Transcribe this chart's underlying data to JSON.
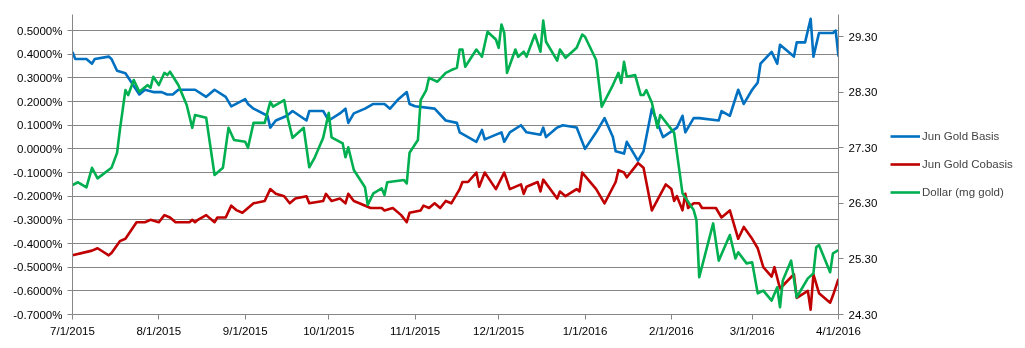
{
  "chart_data": {
    "type": "line",
    "xlim": [
      "2015-07-01",
      "2016-04-01"
    ],
    "xticks": [
      {
        "value": "2015-07-01",
        "label": "7/1/2015"
      },
      {
        "value": "2015-08-01",
        "label": "8/1/2015"
      },
      {
        "value": "2015-09-01",
        "label": "9/1/2015"
      },
      {
        "value": "2015-10-01",
        "label": "10/1/2015"
      },
      {
        "value": "2015-11-01",
        "label": "11/1/2015"
      },
      {
        "value": "2015-12-01",
        "label": "12/1/2015"
      },
      {
        "value": "2016-01-01",
        "label": "1/1/2016"
      },
      {
        "value": "2016-02-01",
        "label": "2/1/2016"
      },
      {
        "value": "2016-03-01",
        "label": "3/1/2016"
      },
      {
        "value": "2016-04-01",
        "label": "4/1/2016"
      }
    ],
    "ylim": [
      -0.7,
      0.568
    ],
    "yticks": [
      {
        "value": 0.5,
        "label": "0.5000%"
      },
      {
        "value": 0.4,
        "label": "0.4000%"
      },
      {
        "value": 0.3,
        "label": "0.3000%"
      },
      {
        "value": 0.2,
        "label": "0.2000%"
      },
      {
        "value": 0.1,
        "label": "0.1000%"
      },
      {
        "value": 0.0,
        "label": "0.0000%"
      },
      {
        "value": -0.1,
        "label": "-0.1000%"
      },
      {
        "value": -0.2,
        "label": "-0.2000%"
      },
      {
        "value": -0.3,
        "label": "-0.3000%"
      },
      {
        "value": -0.4,
        "label": "-0.4000%"
      },
      {
        "value": -0.5,
        "label": "-0.5000%"
      },
      {
        "value": -0.6,
        "label": "-0.6000%"
      },
      {
        "value": -0.7,
        "label": "-0.7000%"
      }
    ],
    "y2lim": [
      24.3,
      29.7
    ],
    "y2ticks": [
      {
        "value": 24.3,
        "label": "24.30"
      },
      {
        "value": 25.3,
        "label": "25.30"
      },
      {
        "value": 26.3,
        "label": "26.30"
      },
      {
        "value": 27.3,
        "label": "27.30"
      },
      {
        "value": 28.3,
        "label": "28.30"
      },
      {
        "value": 29.3,
        "label": "29.30"
      }
    ],
    "grid": "y",
    "legend": "right",
    "marker": "none",
    "line_style": "solid",
    "series": [
      {
        "name": "Jun Gold Basis",
        "color": "#0070c0",
        "x": [
          "2015-07-01",
          "2015-07-02",
          "2015-07-06",
          "2015-07-08",
          "2015-07-09",
          "2015-07-14",
          "2015-07-15",
          "2015-07-17",
          "2015-07-20",
          "2015-07-25",
          "2015-07-27",
          "2015-07-30",
          "2015-08-02",
          "2015-08-04",
          "2015-08-06",
          "2015-08-08",
          "2015-08-12",
          "2015-08-14",
          "2015-08-18",
          "2015-08-21",
          "2015-08-25",
          "2015-08-27",
          "2015-09-01",
          "2015-09-02",
          "2015-09-04",
          "2015-09-09",
          "2015-09-10",
          "2015-09-12",
          "2015-09-16",
          "2015-09-18",
          "2015-09-23",
          "2015-09-24",
          "2015-09-29",
          "2015-10-01",
          "2015-10-05",
          "2015-10-07",
          "2015-10-08",
          "2015-10-10",
          "2015-10-14",
          "2015-10-17",
          "2015-10-21",
          "2015-10-23",
          "2015-10-26",
          "2015-10-29",
          "2015-10-30",
          "2015-11-01",
          "2015-11-08",
          "2015-11-12",
          "2015-11-16",
          "2015-11-17",
          "2015-11-23",
          "2015-11-25",
          "2015-11-26",
          "2015-12-02",
          "2015-12-03",
          "2015-12-05",
          "2015-12-09",
          "2015-12-11",
          "2015-12-16",
          "2015-12-17",
          "2015-12-18",
          "2015-12-22",
          "2015-12-24",
          "2015-12-29",
          "2016-01-01",
          "2016-01-05",
          "2016-01-08",
          "2016-01-11",
          "2016-01-12",
          "2016-01-15",
          "2016-01-16",
          "2016-01-20",
          "2016-01-22",
          "2016-01-25",
          "2016-01-29",
          "2016-02-03",
          "2016-02-05",
          "2016-02-06",
          "2016-02-09",
          "2016-02-11",
          "2016-02-18",
          "2016-02-19",
          "2016-02-22",
          "2016-02-25",
          "2016-02-27",
          "2016-03-01",
          "2016-03-03",
          "2016-03-04",
          "2016-03-08",
          "2016-03-10",
          "2016-03-11",
          "2016-03-16",
          "2016-03-17",
          "2016-03-20",
          "2016-03-22",
          "2016-03-23",
          "2016-03-25",
          "2016-03-30",
          "2016-03-31",
          "2016-04-01"
        ],
        "values": [
          0.41,
          0.38,
          0.38,
          0.36,
          0.38,
          0.39,
          0.38,
          0.33,
          0.32,
          0.23,
          0.25,
          0.24,
          0.24,
          0.23,
          0.23,
          0.25,
          0.25,
          0.25,
          0.22,
          0.25,
          0.22,
          0.18,
          0.21,
          0.19,
          0.17,
          0.14,
          0.09,
          0.12,
          0.14,
          0.16,
          0.12,
          0.16,
          0.16,
          0.12,
          0.15,
          0.17,
          0.11,
          0.15,
          0.17,
          0.19,
          0.19,
          0.17,
          0.21,
          0.24,
          0.19,
          0.18,
          0.17,
          0.12,
          0.11,
          0.07,
          0.03,
          0.08,
          0.04,
          0.07,
          0.03,
          0.07,
          0.1,
          0.07,
          0.06,
          0.09,
          0.05,
          0.09,
          0.1,
          0.09,
          0.0,
          0.07,
          0.13,
          0.05,
          -0.01,
          -0.02,
          0.03,
          -0.05,
          -0.01,
          0.17,
          0.05,
          0.09,
          0.14,
          0.07,
          0.13,
          0.13,
          0.12,
          0.16,
          0.14,
          0.25,
          0.19,
          0.25,
          0.28,
          0.36,
          0.41,
          0.36,
          0.44,
          0.39,
          0.45,
          0.45,
          0.55,
          0.39,
          0.49,
          0.49,
          0.5,
          0.39
        ]
      },
      {
        "name": "Jun Gold Cobasis",
        "color": "#c00000",
        "x": [
          "2015-07-01",
          "2015-07-08",
          "2015-07-10",
          "2015-07-14",
          "2015-07-15",
          "2015-07-18",
          "2015-07-20",
          "2015-07-24",
          "2015-07-27",
          "2015-07-29",
          "2015-08-01",
          "2015-08-03",
          "2015-08-05",
          "2015-08-07",
          "2015-08-12",
          "2015-08-13",
          "2015-08-14",
          "2015-08-15",
          "2015-08-18",
          "2015-08-21",
          "2015-08-22",
          "2015-08-25",
          "2015-08-27",
          "2015-08-29",
          "2015-08-31",
          "2015-09-02",
          "2015-09-04",
          "2015-09-08",
          "2015-09-10",
          "2015-09-12",
          "2015-09-15",
          "2015-09-17",
          "2015-09-19",
          "2015-09-23",
          "2015-09-24",
          "2015-09-29",
          "2015-09-30",
          "2015-10-02",
          "2015-10-05",
          "2015-10-07",
          "2015-10-08",
          "2015-10-10",
          "2015-10-12",
          "2015-10-16",
          "2015-10-20",
          "2015-10-21",
          "2015-10-24",
          "2015-10-27",
          "2015-10-29",
          "2015-10-30",
          "2015-11-03",
          "2015-11-04",
          "2015-11-06",
          "2015-11-08",
          "2015-11-10",
          "2015-11-12",
          "2015-11-14",
          "2015-11-17",
          "2015-11-18",
          "2015-11-20",
          "2015-11-23",
          "2015-11-24",
          "2015-11-26",
          "2015-11-30",
          "2015-12-03",
          "2015-12-05",
          "2015-12-09",
          "2015-12-10",
          "2015-12-11",
          "2015-12-15",
          "2015-12-16",
          "2015-12-17",
          "2015-12-22",
          "2015-12-23",
          "2015-12-25",
          "2015-12-29",
          "2015-12-30",
          "2015-12-31",
          "2016-01-05",
          "2016-01-08",
          "2016-01-12",
          "2016-01-13",
          "2016-01-15",
          "2016-01-16",
          "2016-01-20",
          "2016-01-22",
          "2016-01-25",
          "2016-01-30",
          "2016-02-01",
          "2016-02-02",
          "2016-02-03",
          "2016-02-05",
          "2016-02-06",
          "2016-02-07",
          "2016-02-09",
          "2016-02-11",
          "2016-02-12",
          "2016-02-17",
          "2016-02-19",
          "2016-02-22",
          "2016-02-25",
          "2016-02-27",
          "2016-03-01",
          "2016-03-03",
          "2016-03-05",
          "2016-03-08",
          "2016-03-09",
          "2016-03-11",
          "2016-03-16",
          "2016-03-17",
          "2016-03-21",
          "2016-03-22",
          "2016-03-23",
          "2016-03-25",
          "2016-03-29",
          "2016-03-30",
          "2016-04-01"
        ],
        "values": [
          -0.45,
          -0.43,
          -0.42,
          -0.45,
          -0.44,
          -0.39,
          -0.38,
          -0.31,
          -0.31,
          -0.3,
          -0.31,
          -0.28,
          -0.29,
          -0.31,
          -0.31,
          -0.3,
          -0.31,
          -0.3,
          -0.28,
          -0.31,
          -0.29,
          -0.29,
          -0.24,
          -0.26,
          -0.27,
          -0.25,
          -0.23,
          -0.22,
          -0.17,
          -0.19,
          -0.2,
          -0.23,
          -0.21,
          -0.2,
          -0.23,
          -0.22,
          -0.19,
          -0.22,
          -0.21,
          -0.23,
          -0.19,
          -0.22,
          -0.23,
          -0.25,
          -0.25,
          -0.26,
          -0.25,
          -0.28,
          -0.31,
          -0.27,
          -0.26,
          -0.24,
          -0.25,
          -0.23,
          -0.25,
          -0.22,
          -0.23,
          -0.17,
          -0.14,
          -0.14,
          -0.1,
          -0.16,
          -0.1,
          -0.17,
          -0.1,
          -0.17,
          -0.15,
          -0.19,
          -0.16,
          -0.14,
          -0.18,
          -0.13,
          -0.21,
          -0.18,
          -0.2,
          -0.17,
          -0.18,
          -0.1,
          -0.17,
          -0.23,
          -0.14,
          -0.09,
          -0.1,
          -0.12,
          -0.06,
          -0.08,
          -0.26,
          -0.15,
          -0.17,
          -0.22,
          -0.2,
          -0.26,
          -0.19,
          -0.25,
          -0.23,
          -0.23,
          -0.25,
          -0.25,
          -0.29,
          -0.26,
          -0.38,
          -0.33,
          -0.38,
          -0.42,
          -0.5,
          -0.54,
          -0.5,
          -0.59,
          -0.53,
          -0.63,
          -0.6,
          -0.68,
          -0.53,
          -0.61,
          -0.65,
          -0.62,
          -0.55
        ]
      },
      {
        "name": "Dollar (mg gold)",
        "color": "#00b050",
        "axis": "y2",
        "x": [
          "2015-07-01",
          "2015-07-03",
          "2015-07-06",
          "2015-07-08",
          "2015-07-10",
          "2015-07-15",
          "2015-07-17",
          "2015-07-18",
          "2015-07-20",
          "2015-07-21",
          "2015-07-23",
          "2015-07-25",
          "2015-07-28",
          "2015-07-29",
          "2015-07-30",
          "2015-08-01",
          "2015-08-03",
          "2015-08-04",
          "2015-08-05",
          "2015-08-08",
          "2015-08-11",
          "2015-08-13",
          "2015-08-14",
          "2015-08-18",
          "2015-08-21",
          "2015-08-24",
          "2015-08-26",
          "2015-08-28",
          "2015-09-01",
          "2015-09-02",
          "2015-09-04",
          "2015-09-08",
          "2015-09-10",
          "2015-09-11",
          "2015-09-15",
          "2015-09-16",
          "2015-09-18",
          "2015-09-20",
          "2015-09-22",
          "2015-09-24",
          "2015-09-26",
          "2015-09-29",
          "2015-10-01",
          "2015-10-02",
          "2015-10-06",
          "2015-10-07",
          "2015-10-08",
          "2015-10-10",
          "2015-10-14",
          "2015-10-15",
          "2015-10-17",
          "2015-10-20",
          "2015-10-21",
          "2015-10-22",
          "2015-10-28",
          "2015-10-29",
          "2015-10-30",
          "2015-11-02",
          "2015-11-03",
          "2015-11-05",
          "2015-11-06",
          "2015-11-09",
          "2015-11-12",
          "2015-11-14",
          "2015-11-16",
          "2015-11-17",
          "2015-11-18",
          "2015-11-19",
          "2015-11-23",
          "2015-11-25",
          "2015-11-27",
          "2015-11-30",
          "2015-12-01",
          "2015-12-02",
          "2015-12-03",
          "2015-12-04",
          "2015-12-07",
          "2015-12-08",
          "2015-12-10",
          "2015-12-11",
          "2015-12-14",
          "2015-12-16",
          "2015-12-17",
          "2015-12-18",
          "2015-12-22",
          "2015-12-23",
          "2015-12-25",
          "2015-12-29",
          "2015-12-31",
          "2016-01-01",
          "2016-01-05",
          "2016-01-07",
          "2016-01-11",
          "2016-01-13",
          "2016-01-14",
          "2016-01-15",
          "2016-01-16",
          "2016-01-19",
          "2016-01-21",
          "2016-01-22",
          "2016-01-23",
          "2016-01-25",
          "2016-01-27",
          "2016-01-28",
          "2016-02-02",
          "2016-02-05",
          "2016-02-09",
          "2016-02-10",
          "2016-02-11",
          "2016-02-16",
          "2016-02-18",
          "2016-02-22",
          "2016-02-24",
          "2016-02-25",
          "2016-02-28",
          "2016-03-01",
          "2016-03-03",
          "2016-03-05",
          "2016-03-08",
          "2016-03-10",
          "2016-03-11",
          "2016-03-12",
          "2016-03-15",
          "2016-03-17",
          "2016-03-21",
          "2016-03-23",
          "2016-03-24",
          "2016-03-25",
          "2016-03-29",
          "2016-03-30",
          "2016-04-01"
        ],
        "values": [
          26.63,
          26.68,
          26.59,
          26.94,
          26.75,
          26.94,
          27.21,
          27.62,
          28.34,
          28.25,
          28.52,
          28.31,
          28.43,
          28.38,
          28.58,
          28.43,
          28.65,
          28.61,
          28.67,
          28.43,
          28.07,
          27.66,
          27.89,
          27.84,
          26.81,
          26.94,
          27.66,
          27.44,
          27.41,
          27.3,
          27.75,
          27.75,
          28.13,
          28.04,
          28.16,
          27.89,
          27.48,
          27.57,
          27.66,
          26.95,
          27.13,
          27.48,
          27.93,
          27.49,
          27.38,
          27.13,
          27.31,
          26.9,
          26.59,
          26.27,
          26.48,
          26.57,
          26.45,
          26.68,
          26.72,
          26.66,
          27.21,
          27.44,
          28.16,
          28.34,
          28.56,
          28.49,
          28.65,
          28.7,
          28.74,
          29.07,
          29.07,
          28.76,
          29.07,
          28.94,
          29.39,
          29.25,
          29.1,
          29.52,
          29.37,
          28.65,
          29.07,
          28.94,
          29.03,
          28.94,
          29.34,
          29.03,
          29.59,
          29.21,
          28.87,
          29.07,
          28.92,
          29.1,
          29.34,
          29.3,
          28.88,
          28.04,
          28.43,
          28.65,
          28.47,
          28.85,
          28.58,
          28.61,
          28.25,
          28.25,
          28.34,
          28.11,
          27.66,
          27.89,
          27.57,
          26.48,
          26.18,
          26.0,
          24.97,
          25.94,
          25.27,
          25.73,
          25.31,
          25.42,
          25.22,
          25.24,
          24.68,
          24.73,
          24.55,
          24.79,
          24.43,
          24.91,
          25.27,
          24.61,
          24.95,
          25.04,
          25.51,
          25.55,
          25.06,
          25.4,
          25.46
        ]
      }
    ]
  }
}
